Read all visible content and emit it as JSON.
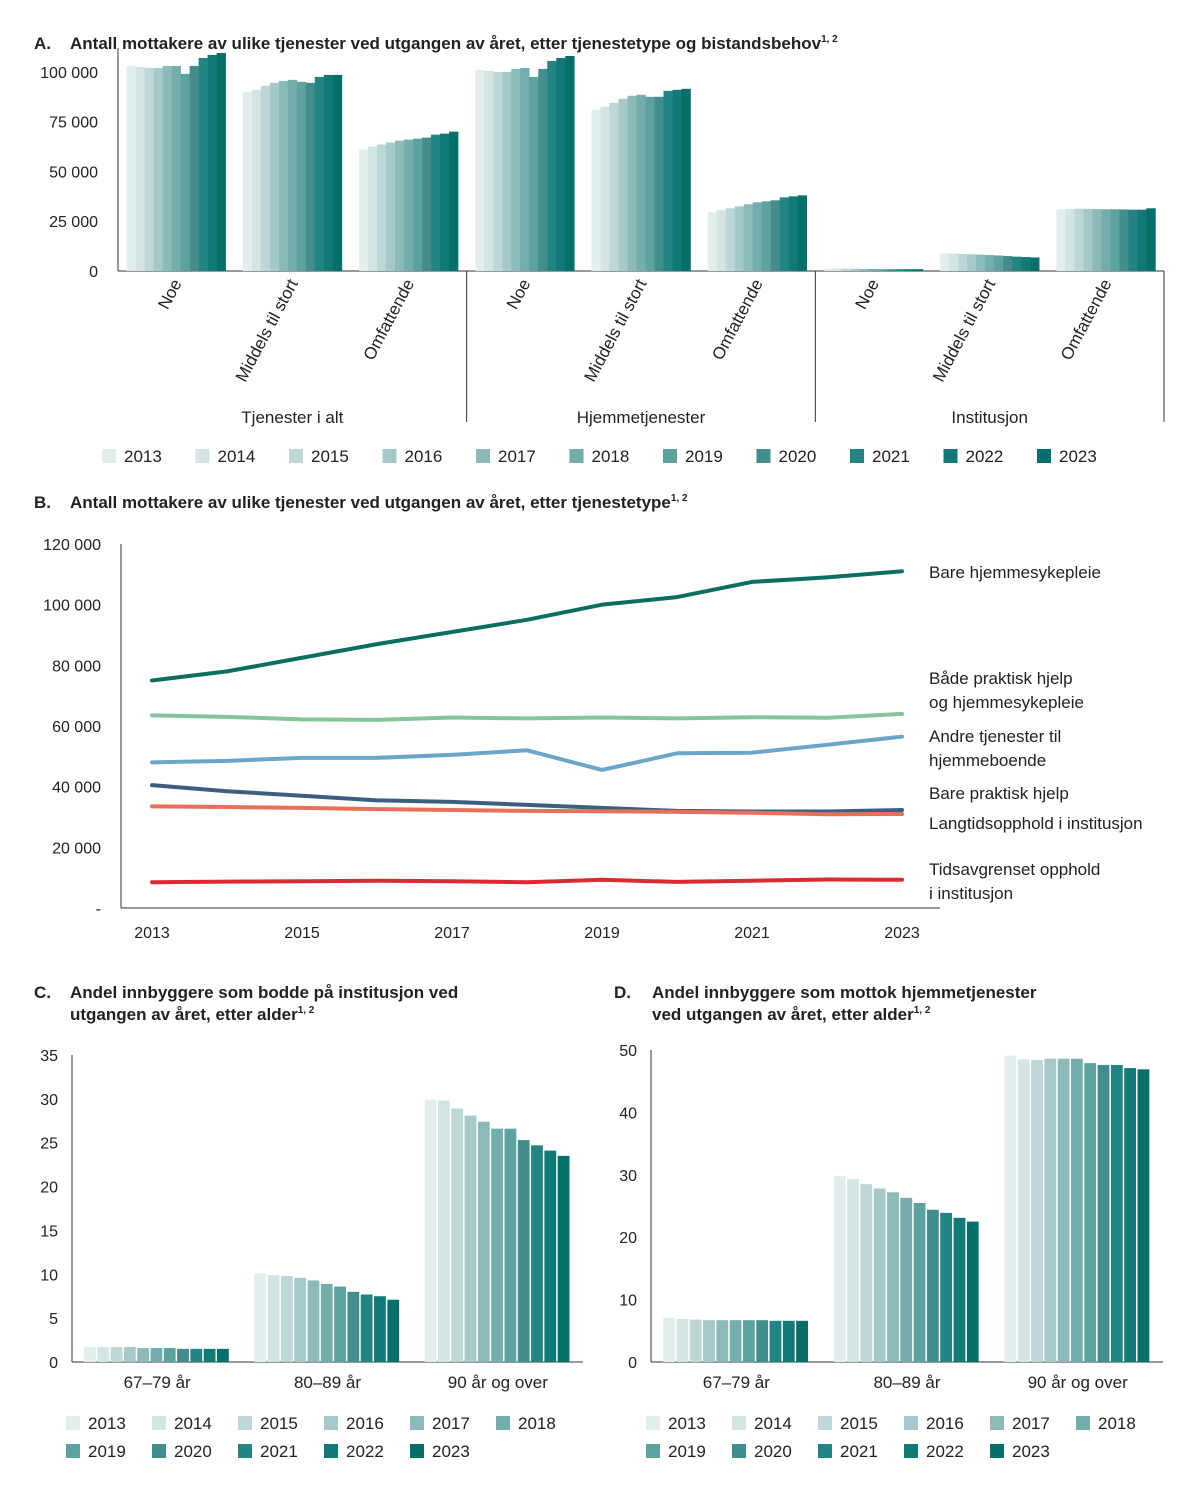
{
  "colors": {
    "years": [
      "#e2eeee",
      "#d2e4e3",
      "#bcd7d6",
      "#a5c9c8",
      "#8cbab8",
      "#74adab",
      "#5ca29f",
      "#438e8d",
      "#228584",
      "#127a76",
      "#05706a"
    ],
    "line_dark_green": "#0b6e62",
    "line_light_green": "#86c49a",
    "line_light_blue": "#6aa6c8",
    "line_dark_blue": "#3c5f80",
    "line_orange": "#e8705a",
    "line_red": "#dc2a33"
  },
  "chart_data": [
    {
      "id": "A",
      "type": "bar",
      "panel_letter": "A.",
      "title": "Antall mottakere av ulike tjenester ved utgangen av året, etter tjenestetype og bistandsbehov",
      "title_sup": "1, 2",
      "ylim": [
        0,
        110000
      ],
      "y_ticks": [
        "0",
        "25 000",
        "50 000",
        "75 000",
        "100 000"
      ],
      "y_tick_values": [
        0,
        25000,
        50000,
        75000,
        100000
      ],
      "groups": [
        {
          "name": "Tjenester i alt",
          "categories": [
            "Noe",
            "Middels til stort",
            "Omfattende"
          ]
        },
        {
          "name": "Hjemmetjenester",
          "categories": [
            "Noe",
            "Middels til stort",
            "Omfattende"
          ]
        },
        {
          "name": "Institusjon",
          "categories": [
            "Noe",
            "Middels til stort",
            "Omfattende"
          ]
        }
      ],
      "legend": [
        "2013",
        "2014",
        "2015",
        "2016",
        "2017",
        "2018",
        "2019",
        "2020",
        "2021",
        "2022",
        "2023"
      ],
      "values": [
        [
          103000,
          102500,
          102000,
          102000,
          103000,
          103000,
          99000,
          103000,
          107000,
          108500,
          109500
        ],
        [
          90000,
          91000,
          93000,
          94500,
          95500,
          96000,
          95000,
          94500,
          97500,
          98500,
          98500
        ],
        [
          61000,
          62500,
          63500,
          64500,
          65500,
          66000,
          66500,
          67000,
          68500,
          69000,
          70000
        ],
        [
          101000,
          100500,
          100000,
          100000,
          101500,
          102000,
          97500,
          101500,
          105500,
          107000,
          108000
        ],
        [
          81000,
          82500,
          84500,
          86500,
          88000,
          88500,
          87500,
          87500,
          90500,
          91000,
          91500
        ],
        [
          29500,
          30500,
          31500,
          32500,
          33500,
          34500,
          35000,
          35500,
          37000,
          37500,
          38000
        ],
        [
          1200,
          1200,
          1100,
          1100,
          1000,
          1000,
          900,
          900,
          900,
          900,
          900
        ],
        [
          9000,
          8800,
          8600,
          8400,
          8200,
          8000,
          7800,
          7500,
          7200,
          7000,
          6800
        ],
        [
          31000,
          31200,
          31300,
          31200,
          31100,
          31000,
          31000,
          30900,
          30800,
          30800,
          31500
        ]
      ]
    },
    {
      "id": "B",
      "type": "line",
      "panel_letter": "B.",
      "title": "Antall mottakere av ulike tjenester ved utgangen av året, etter tjenestetype",
      "title_sup": "1, 2",
      "ylim": [
        0,
        120000
      ],
      "y_ticks": [
        "-",
        "20 000",
        "40 000",
        "60 000",
        "80 000",
        "100 000",
        "120 000"
      ],
      "y_tick_values": [
        0,
        20000,
        40000,
        60000,
        80000,
        100000,
        120000
      ],
      "x": [
        2013,
        2014,
        2015,
        2016,
        2017,
        2018,
        2019,
        2020,
        2021,
        2022,
        2023
      ],
      "x_ticks": [
        "2013",
        "2015",
        "2017",
        "2019",
        "2021",
        "2023"
      ],
      "x_tick_values": [
        2013,
        2015,
        2017,
        2019,
        2021,
        2023
      ],
      "series": [
        {
          "name_lines": [
            "Bare hjemmesykepleie"
          ],
          "color_key": "line_dark_green",
          "values": [
            75000,
            78000,
            82500,
            87000,
            91000,
            95000,
            100000,
            102500,
            107500,
            109000,
            111000
          ]
        },
        {
          "name_lines": [
            "Både praktisk hjelp",
            "og hjemmesykepleie"
          ],
          "color_key": "line_light_green",
          "values": [
            63500,
            63000,
            62200,
            62000,
            62800,
            62500,
            62800,
            62500,
            62900,
            62700,
            64000
          ]
        },
        {
          "name_lines": [
            "Andre tjenester til",
            "hjemmeboende"
          ],
          "color_key": "line_light_blue",
          "values": [
            48000,
            48500,
            49500,
            49500,
            50500,
            52000,
            45500,
            51000,
            51200,
            53800,
            56500
          ]
        },
        {
          "name_lines": [
            "Bare praktisk hjelp"
          ],
          "color_key": "line_dark_blue",
          "values": [
            40500,
            38500,
            37000,
            35500,
            35000,
            34000,
            33000,
            32000,
            31800,
            31800,
            32300
          ]
        },
        {
          "name_lines": [
            "Langtidsopphold i institusjon"
          ],
          "color_key": "line_orange",
          "values": [
            33500,
            33300,
            33000,
            32600,
            32300,
            32000,
            31900,
            31700,
            31400,
            30900,
            31000
          ]
        },
        {
          "name_lines": [
            "Tidsavgrenset opphold",
            "i institusjon"
          ],
          "color_key": "line_red",
          "values": [
            8500,
            8700,
            8800,
            9000,
            8800,
            8500,
            9300,
            8600,
            9000,
            9400,
            9300
          ]
        }
      ]
    },
    {
      "id": "C",
      "type": "bar",
      "panel_letter": "C.",
      "title_lines": [
        "Andel innbyggere som bodde på institusjon ved",
        "utgangen av året, etter alder"
      ],
      "title_sup": "1, 2",
      "ylim": [
        0,
        35
      ],
      "y_ticks": [
        "0",
        "5",
        "10",
        "15",
        "20",
        "25",
        "30",
        "35"
      ],
      "y_tick_values": [
        0,
        5,
        10,
        15,
        20,
        25,
        30,
        35
      ],
      "categories": [
        "67–79 år",
        "80–89 år",
        "90 år og over"
      ],
      "legend": [
        "2013",
        "2014",
        "2015",
        "2016",
        "2017",
        "2018",
        "2019",
        "2020",
        "2021",
        "2022",
        "2023"
      ],
      "values": [
        [
          1.7,
          1.7,
          1.7,
          1.7,
          1.6,
          1.6,
          1.6,
          1.5,
          1.5,
          1.5,
          1.5
        ],
        [
          10.1,
          9.9,
          9.8,
          9.6,
          9.3,
          8.9,
          8.6,
          8.0,
          7.7,
          7.5,
          7.1
        ],
        [
          29.9,
          29.8,
          28.9,
          28.1,
          27.4,
          26.6,
          26.6,
          25.3,
          24.7,
          24.1,
          23.5
        ]
      ]
    },
    {
      "id": "D",
      "type": "bar",
      "panel_letter": "D.",
      "title_lines": [
        "Andel innbyggere som mottok hjemmetjenester",
        "ved utgangen av året, etter alder"
      ],
      "title_sup": "1, 2",
      "ylim": [
        0,
        50
      ],
      "y_ticks": [
        "0",
        "10",
        "20",
        "30",
        "40",
        "50"
      ],
      "y_tick_values": [
        0,
        10,
        20,
        30,
        40,
        50
      ],
      "categories": [
        "67–79 år",
        "80–89 år",
        "90 år og over"
      ],
      "legend": [
        "2013",
        "2014",
        "2015",
        "2016",
        "2017",
        "2018",
        "2019",
        "2020",
        "2021",
        "2022",
        "2023"
      ],
      "values": [
        [
          7.1,
          6.9,
          6.8,
          6.7,
          6.7,
          6.7,
          6.7,
          6.7,
          6.6,
          6.6,
          6.6
        ],
        [
          29.8,
          29.3,
          28.5,
          27.8,
          27.2,
          26.3,
          25.5,
          24.4,
          23.9,
          23.1,
          22.5
        ],
        [
          49.1,
          48.5,
          48.4,
          48.6,
          48.6,
          48.6,
          47.9,
          47.6,
          47.6,
          47.1,
          46.9
        ]
      ]
    }
  ]
}
